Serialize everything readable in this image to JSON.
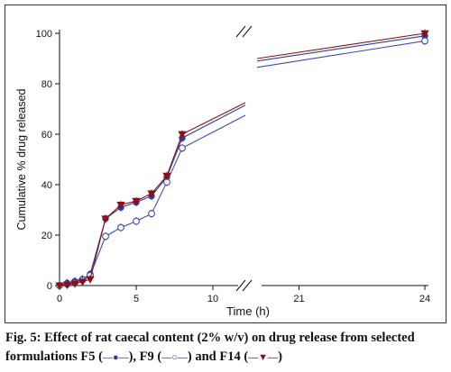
{
  "chart_data": {
    "type": "line",
    "title": "",
    "xlabel": "Time (h)",
    "ylabel": "Cumulative % drug released",
    "ylim": [
      0,
      100
    ],
    "x_segments": [
      [
        0,
        12
      ],
      [
        20,
        24
      ]
    ],
    "x_ticks": [
      0,
      5,
      10,
      21,
      24
    ],
    "y_ticks": [
      0,
      20,
      40,
      60,
      80,
      100
    ],
    "grid": false,
    "axis_break": true,
    "series": [
      {
        "name": "F5",
        "color": "#2a3f9e",
        "marker": "filled-circle",
        "x": [
          0,
          0.5,
          1,
          1.5,
          2,
          3,
          4,
          5,
          6,
          7,
          8,
          24
        ],
        "y": [
          0,
          1,
          1.7,
          2.5,
          4.5,
          26.5,
          31,
          33,
          35.5,
          43,
          58.5,
          99
        ],
        "break_start": 71.5,
        "break_end": 89
      },
      {
        "name": "F9",
        "color": "#3a4db0",
        "marker": "open-circle",
        "x": [
          0,
          0.5,
          1,
          1.5,
          2,
          3,
          4,
          5,
          6,
          7,
          8,
          24
        ],
        "y": [
          0,
          0.5,
          1.2,
          2.2,
          4,
          19.5,
          23,
          25.5,
          28.5,
          41,
          54.5,
          97
        ],
        "break_start": 67.5,
        "break_end": 86.5
      },
      {
        "name": "F14",
        "color": "#8b0f14",
        "marker": "filled-triangle-down",
        "x": [
          0,
          0.5,
          1,
          1.5,
          2,
          3,
          4,
          5,
          6,
          7,
          8,
          24
        ],
        "y": [
          0,
          0.3,
          0.8,
          1.5,
          2.5,
          26.5,
          32,
          33.5,
          36.5,
          43.5,
          60,
          100
        ],
        "break_start": 72.5,
        "break_end": 90
      }
    ]
  },
  "caption": {
    "fig_label": "Fig. 5:",
    "text": "Effect of rat caecal content (2% w/v) on drug release from selected formulations F5 (",
    "glyph_f5": "—●—",
    "mid1": "), F9 (",
    "glyph_f9": "—○—",
    "mid2": ") and F14 (",
    "glyph_f14": "—▼—",
    "end": ")"
  }
}
